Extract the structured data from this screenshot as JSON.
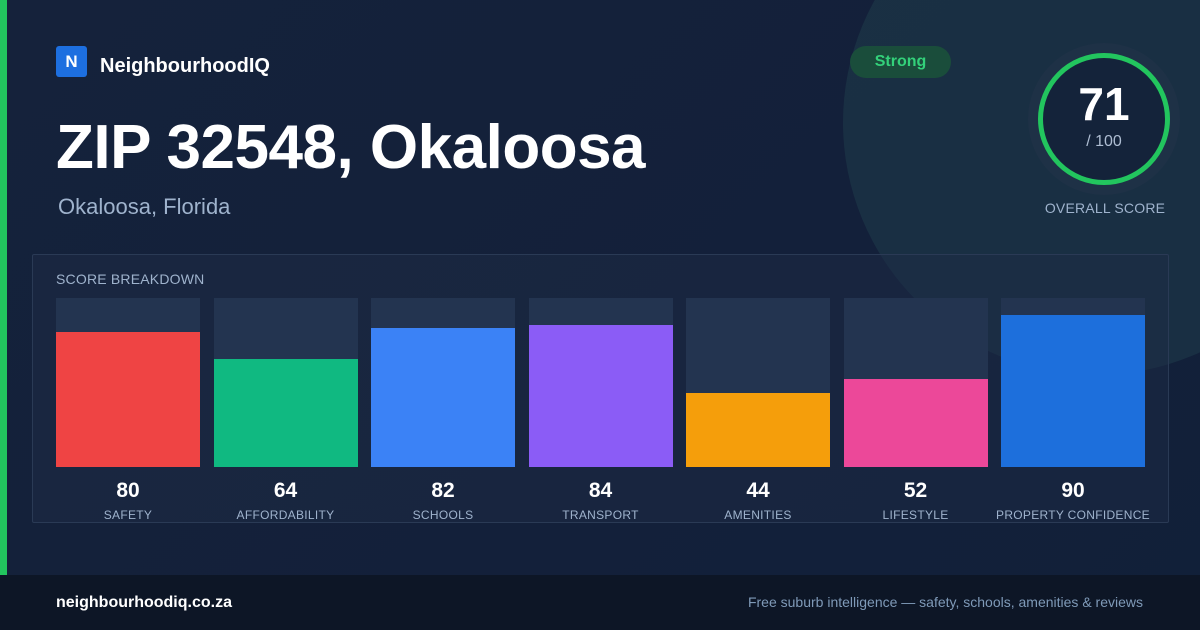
{
  "brand": {
    "logo_letter": "N",
    "name": "NeighbourhoodIQ"
  },
  "header": {
    "title": "ZIP 32548, Okaloosa",
    "subtitle": "Okaloosa, Florida",
    "badge": "Strong"
  },
  "score": {
    "value": "71",
    "max": "/ 100",
    "label": "OVERALL SCORE"
  },
  "breakdown": {
    "title": "SCORE BREAKDOWN",
    "max": 100,
    "metrics": [
      {
        "label": "SAFETY",
        "value": 80,
        "color": "#ef4444"
      },
      {
        "label": "AFFORDABILITY",
        "value": 64,
        "color": "#10b981"
      },
      {
        "label": "SCHOOLS",
        "value": 82,
        "color": "#3b82f6"
      },
      {
        "label": "TRANSPORT",
        "value": 84,
        "color": "#8b5cf6"
      },
      {
        "label": "AMENITIES",
        "value": 44,
        "color": "#f59e0b"
      },
      {
        "label": "LIFESTYLE",
        "value": 52,
        "color": "#ec4899"
      },
      {
        "label": "PROPERTY CONFIDENCE",
        "value": 90,
        "color": "#1d6fdc"
      }
    ]
  },
  "footer": {
    "url": "neighbourhoodiq.co.za",
    "tagline": "Free suburb intelligence — safety, schools, amenities & reviews"
  },
  "colors": {
    "accent": "#22c55e",
    "background": "#13213a",
    "brand": "#1d6fe0"
  }
}
